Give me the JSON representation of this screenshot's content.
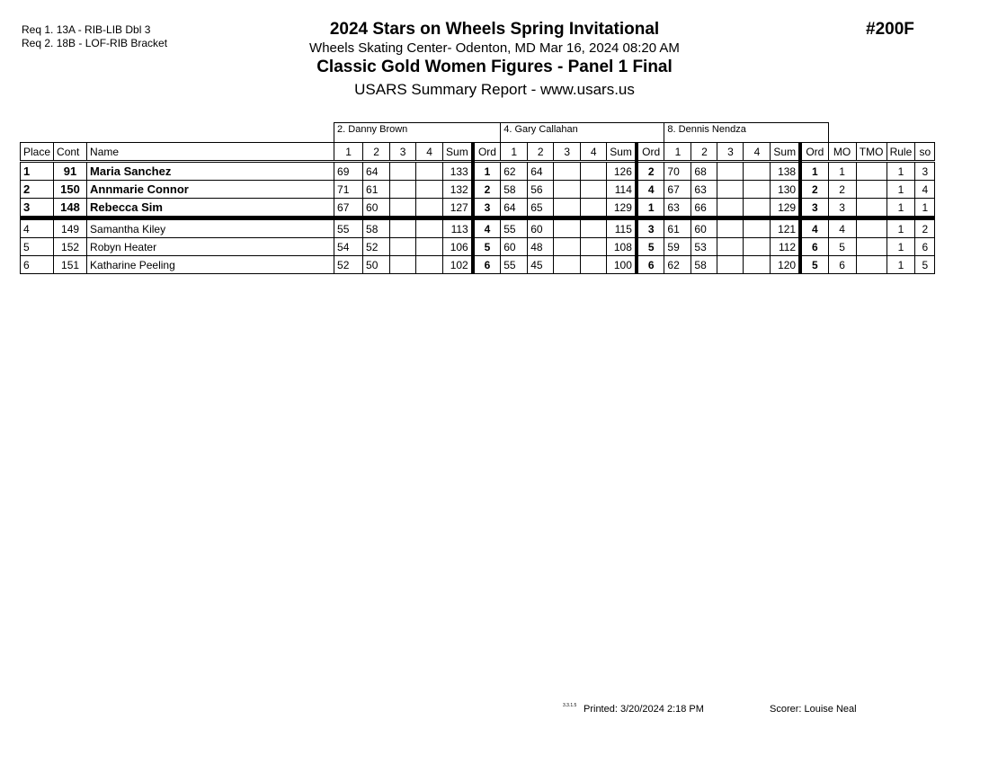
{
  "header": {
    "requirements": [
      "Req  1.  13A - RIB-LIB Dbl 3",
      "Req  2.  18B - LOF-RIB Bracket"
    ],
    "title": "2024 Stars on Wheels Spring Invitational",
    "venue_line": "Wheels Skating Center- Odenton, MD  Mar 16, 2024  08:20 AM",
    "event_title": "Classic Gold Women Figures - Panel 1 Final",
    "report_line": "USARS Summary Report - www.usars.us",
    "event_number": "#200F"
  },
  "table": {
    "judges": [
      "2.  Danny Brown",
      "4.  Gary Callahan",
      "8.  Dennis Nendza"
    ],
    "columns": {
      "place": "Place",
      "cont": "Cont",
      "name": "Name",
      "s1": "1",
      "s2": "2",
      "s3": "3",
      "s4": "4",
      "sum": "Sum",
      "ord": "Ord",
      "mo": "MO",
      "tmo": "TMO",
      "rule": "Rule",
      "so": "so"
    },
    "rows": [
      {
        "place": "1",
        "cont": "91",
        "name": "Maria Sanchez",
        "j": [
          [
            "69",
            "64",
            "",
            "",
            "133",
            "1"
          ],
          [
            "62",
            "64",
            "",
            "",
            "126",
            "2"
          ],
          [
            "70",
            "68",
            "",
            "",
            "138",
            "1"
          ]
        ],
        "mo": "1",
        "tmo": "",
        "rule": "1",
        "so": "3"
      },
      {
        "place": "2",
        "cont": "150",
        "name": "Annmarie Connor",
        "j": [
          [
            "71",
            "61",
            "",
            "",
            "132",
            "2"
          ],
          [
            "58",
            "56",
            "",
            "",
            "114",
            "4"
          ],
          [
            "67",
            "63",
            "",
            "",
            "130",
            "2"
          ]
        ],
        "mo": "2",
        "tmo": "",
        "rule": "1",
        "so": "4"
      },
      {
        "place": "3",
        "cont": "148",
        "name": "Rebecca Sim",
        "j": [
          [
            "67",
            "60",
            "",
            "",
            "127",
            "3"
          ],
          [
            "64",
            "65",
            "",
            "",
            "129",
            "1"
          ],
          [
            "63",
            "66",
            "",
            "",
            "129",
            "3"
          ]
        ],
        "mo": "3",
        "tmo": "",
        "rule": "1",
        "so": "1"
      },
      {
        "place": "4",
        "cont": "149",
        "name": "Samantha Kiley",
        "j": [
          [
            "55",
            "58",
            "",
            "",
            "113",
            "4"
          ],
          [
            "55",
            "60",
            "",
            "",
            "115",
            "3"
          ],
          [
            "61",
            "60",
            "",
            "",
            "121",
            "4"
          ]
        ],
        "mo": "4",
        "tmo": "",
        "rule": "1",
        "so": "2"
      },
      {
        "place": "5",
        "cont": "152",
        "name": "Robyn Heater",
        "j": [
          [
            "54",
            "52",
            "",
            "",
            "106",
            "5"
          ],
          [
            "60",
            "48",
            "",
            "",
            "108",
            "5"
          ],
          [
            "59",
            "53",
            "",
            "",
            "112",
            "6"
          ]
        ],
        "mo": "5",
        "tmo": "",
        "rule": "1",
        "so": "6"
      },
      {
        "place": "6",
        "cont": "151",
        "name": "Katharine Peeling",
        "j": [
          [
            "52",
            "50",
            "",
            "",
            "102",
            "6"
          ],
          [
            "55",
            "45",
            "",
            "",
            "100",
            "6"
          ],
          [
            "62",
            "58",
            "",
            "",
            "120",
            "5"
          ]
        ],
        "mo": "6",
        "tmo": "",
        "rule": "1",
        "so": "5"
      }
    ],
    "medal_cutoff_after": 3
  },
  "footer": {
    "version": "3.3.1.5",
    "printed": "Printed:  3/20/2024  2:18 PM",
    "scorer": "Scorer:   Louise Neal"
  }
}
